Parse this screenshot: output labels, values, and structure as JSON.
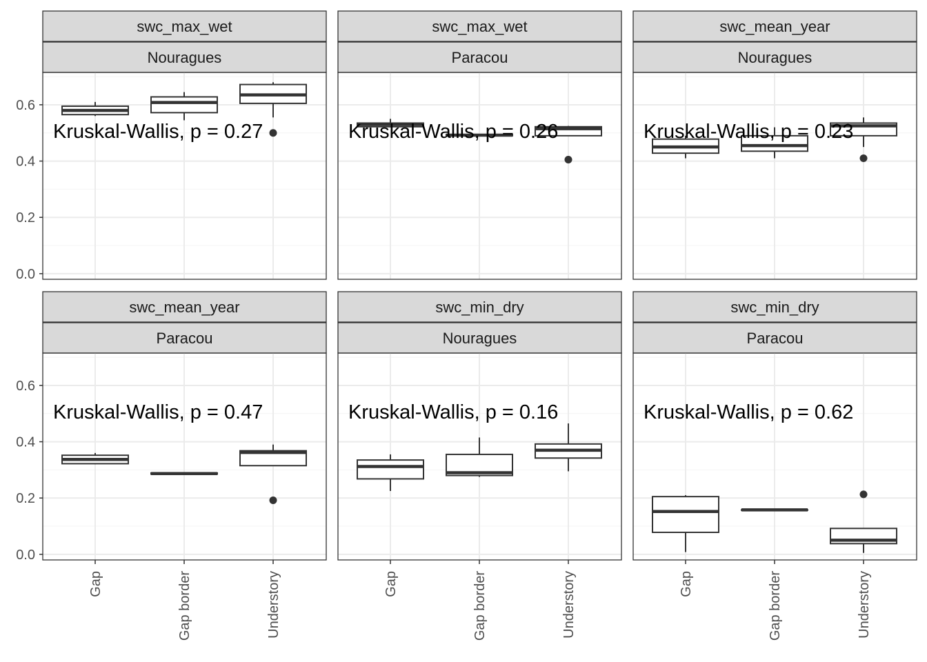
{
  "chart_data": {
    "type": "boxplot",
    "facets": [
      {
        "variable": "swc_max_wet",
        "site": "Nouragues",
        "annotation": "Kruskal-Wallis, p = 0.27",
        "boxes": [
          {
            "category": "Gap",
            "min": 0.56,
            "q1": 0.565,
            "median": 0.58,
            "q3": 0.595,
            "max": 0.61,
            "outliers": []
          },
          {
            "category": "Gap border",
            "min": 0.545,
            "q1": 0.572,
            "median": 0.608,
            "q3": 0.628,
            "max": 0.645,
            "outliers": []
          },
          {
            "category": "Understory",
            "min": 0.555,
            "q1": 0.605,
            "median": 0.635,
            "q3": 0.672,
            "max": 0.68,
            "outliers": [
              0.5
            ]
          }
        ]
      },
      {
        "variable": "swc_max_wet",
        "site": "Paracou",
        "annotation": "Kruskal-Wallis, p = 0.26",
        "boxes": [
          {
            "category": "Gap",
            "min": 0.52,
            "q1": 0.522,
            "median": 0.53,
            "q3": 0.535,
            "max": 0.55,
            "outliers": []
          },
          {
            "category": "Gap border",
            "min": 0.488,
            "q1": 0.49,
            "median": 0.492,
            "q3": 0.494,
            "max": 0.496,
            "outliers": []
          },
          {
            "category": "Understory",
            "min": 0.49,
            "q1": 0.49,
            "median": 0.515,
            "q3": 0.522,
            "max": 0.525,
            "outliers": [
              0.405
            ]
          }
        ]
      },
      {
        "variable": "swc_mean_year",
        "site": "Nouragues",
        "annotation": "Kruskal-Wallis, p = 0.23",
        "boxes": [
          {
            "category": "Gap",
            "min": 0.41,
            "q1": 0.428,
            "median": 0.45,
            "q3": 0.478,
            "max": 0.49,
            "outliers": []
          },
          {
            "category": "Gap border",
            "min": 0.41,
            "q1": 0.435,
            "median": 0.455,
            "q3": 0.49,
            "max": 0.52,
            "outliers": []
          },
          {
            "category": "Understory",
            "min": 0.45,
            "q1": 0.49,
            "median": 0.525,
            "q3": 0.535,
            "max": 0.555,
            "outliers": [
              0.41
            ]
          }
        ]
      },
      {
        "variable": "swc_mean_year",
        "site": "Paracou",
        "annotation": "Kruskal-Wallis, p = 0.47",
        "boxes": [
          {
            "category": "Gap",
            "min": 0.32,
            "q1": 0.322,
            "median": 0.337,
            "q3": 0.352,
            "max": 0.36,
            "outliers": []
          },
          {
            "category": "Gap border",
            "min": 0.285,
            "q1": 0.285,
            "median": 0.287,
            "q3": 0.289,
            "max": 0.289,
            "outliers": []
          },
          {
            "category": "Understory",
            "min": 0.315,
            "q1": 0.315,
            "median": 0.362,
            "q3": 0.368,
            "max": 0.39,
            "outliers": [
              0.192
            ]
          }
        ]
      },
      {
        "variable": "swc_min_dry",
        "site": "Nouragues",
        "annotation": "Kruskal-Wallis, p = 0.16",
        "boxes": [
          {
            "category": "Gap",
            "min": 0.225,
            "q1": 0.268,
            "median": 0.312,
            "q3": 0.335,
            "max": 0.355,
            "outliers": []
          },
          {
            "category": "Gap border",
            "min": 0.275,
            "q1": 0.28,
            "median": 0.29,
            "q3": 0.355,
            "max": 0.415,
            "outliers": []
          },
          {
            "category": "Understory",
            "min": 0.295,
            "q1": 0.342,
            "median": 0.37,
            "q3": 0.392,
            "max": 0.465,
            "outliers": []
          }
        ]
      },
      {
        "variable": "swc_min_dry",
        "site": "Paracou",
        "annotation": "Kruskal-Wallis, p = 0.62",
        "boxes": [
          {
            "category": "Gap",
            "min": 0.008,
            "q1": 0.078,
            "median": 0.152,
            "q3": 0.205,
            "max": 0.21,
            "outliers": []
          },
          {
            "category": "Gap border",
            "min": 0.158,
            "q1": 0.158,
            "median": 0.158,
            "q3": 0.158,
            "max": 0.158,
            "outliers": []
          },
          {
            "category": "Understory",
            "min": 0.005,
            "q1": 0.038,
            "median": 0.05,
            "q3": 0.092,
            "max": 0.092,
            "outliers": [
              0.213
            ]
          }
        ]
      }
    ],
    "categories": [
      "Gap",
      "Gap border",
      "Understory"
    ],
    "y_ticks": [
      "0.0",
      "0.2",
      "0.4",
      "0.6"
    ],
    "ylim": [
      -0.02,
      0.715
    ],
    "grid": true,
    "colors": {
      "strip_fill": "#d9d9d9",
      "panel_border": "#333333",
      "grid": "#ebebeb",
      "box": "#333333"
    }
  }
}
